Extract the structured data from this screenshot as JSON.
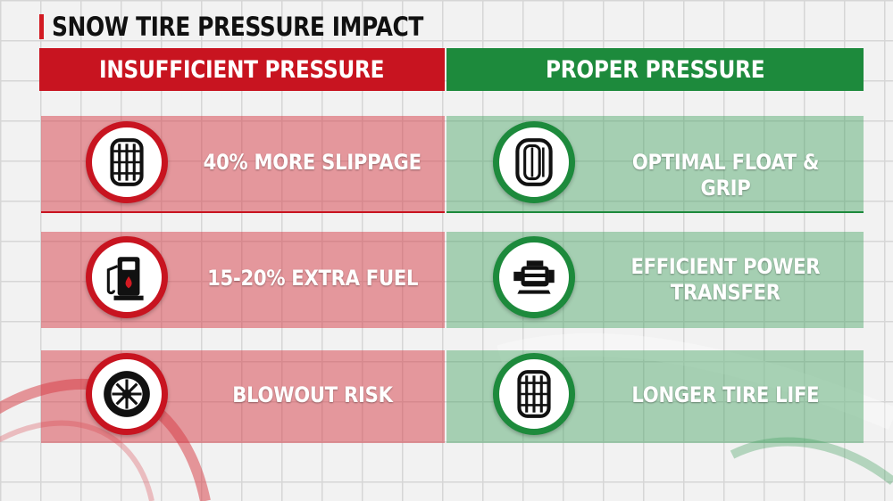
{
  "title": "SNOW TIRE PRESSURE IMPACT",
  "colors": {
    "red": "#c81420",
    "green": "#1d8a3c"
  },
  "left_column": {
    "header": "INSUFFICIENT PRESSURE",
    "items": [
      {
        "icon": "tire-tread-icon",
        "label": "40% MORE SLIPPAGE"
      },
      {
        "icon": "fuel-pump-icon",
        "label": "15-20% EXTRA FUEL"
      },
      {
        "icon": "wheel-rim-icon",
        "label": "BLOWOUT RISK"
      }
    ]
  },
  "right_column": {
    "header": "PROPER PRESSURE",
    "items": [
      {
        "icon": "tire-icon",
        "label": "OPTIMAL FLOAT & GRIP"
      },
      {
        "icon": "engine-icon",
        "label": "EFFICIENT POWER\nTRANSFER"
      },
      {
        "icon": "tire-tread-icon",
        "label": "LONGER TIRE LIFE"
      }
    ]
  }
}
